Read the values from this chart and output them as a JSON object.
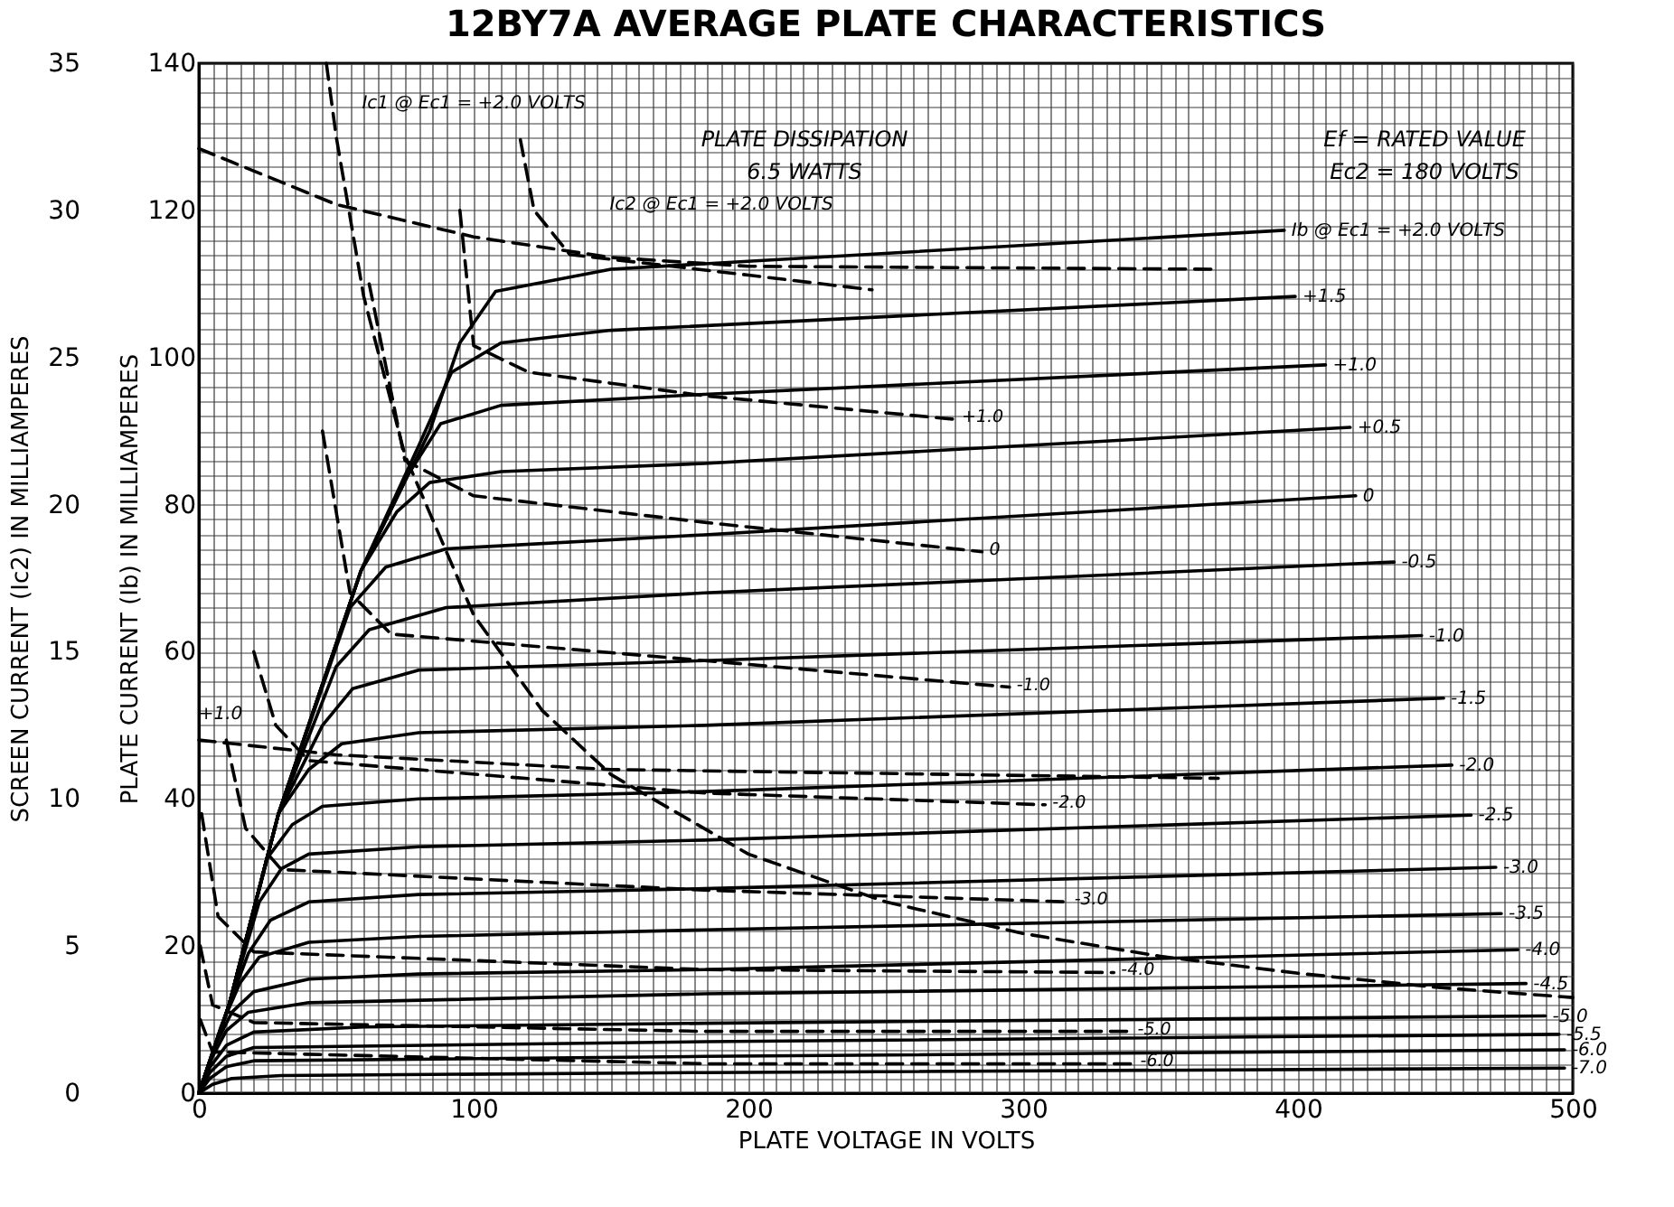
{
  "chart_data": {
    "type": "line",
    "title": "12BY7A AVERAGE PLATE CHARACTERISTICS",
    "xlabel": "PLATE VOLTAGE IN VOLTS",
    "ylabel": "PLATE CURRENT (Ib) IN MILLIAMPERES",
    "y2label": "SCREEN CURRENT (Ic2) IN MILLIAMPERES",
    "xlim": [
      0,
      500
    ],
    "ylim": [
      0,
      140
    ],
    "y2lim": [
      0,
      35
    ],
    "xticks": [
      0,
      {
        "value": 5,
        "label": null
      },
      {
        "value": 10,
        "label": null
      },
      {
        "value": 15,
        "label": null
      },
      {
        "value": 20,
        "label": null
      },
      {
        "value": 25,
        "label": null
      },
      {
        "value": 30,
        "label": null
      },
      {
        "value": 35,
        "label": null
      },
      {
        "value": 40,
        "label": null
      },
      {
        "value": 45,
        "label": null
      },
      {
        "value": 50,
        "label": null
      },
      {
        "value": 55,
        "label": null
      },
      {
        "value": 60,
        "label": null
      },
      {
        "value": 65,
        "label": null
      },
      {
        "value": 70,
        "label": null
      },
      {
        "value": 75,
        "label": null
      },
      {
        "value": 80,
        "label": null
      },
      {
        "value": 85,
        "label": null
      },
      {
        "value": 90,
        "label": null
      },
      {
        "value": 95,
        "label": null
      },
      100,
      {
        "value": 105,
        "label": null
      },
      {
        "value": 110,
        "label": null
      },
      {
        "value": 115,
        "label": null
      },
      {
        "value": 120,
        "label": null
      },
      {
        "value": 125,
        "label": null
      },
      {
        "value": 130,
        "label": null
      },
      {
        "value": 135,
        "label": null
      },
      {
        "value": 140,
        "label": null
      },
      {
        "value": 145,
        "label": null
      },
      {
        "value": 150,
        "label": null
      },
      {
        "value": 155,
        "label": null
      },
      {
        "value": 160,
        "label": null
      },
      {
        "value": 165,
        "label": null
      },
      {
        "value": 170,
        "label": null
      },
      {
        "value": 175,
        "label": null
      },
      {
        "value": 180,
        "label": null
      },
      {
        "value": 185,
        "label": null
      },
      {
        "value": 190,
        "label": null
      },
      {
        "value": 195,
        "label": null
      },
      200,
      {
        "value": 205,
        "label": null
      },
      {
        "value": 210,
        "label": null
      },
      {
        "value": 215,
        "label": null
      },
      {
        "value": 220,
        "label": null
      },
      {
        "value": 225,
        "label": null
      },
      {
        "value": 230,
        "label": null
      },
      {
        "value": 235,
        "label": null
      },
      {
        "value": 240,
        "label": null
      },
      {
        "value": 245,
        "label": null
      },
      {
        "value": 250,
        "label": null
      },
      {
        "value": 255,
        "label": null
      },
      {
        "value": 260,
        "label": null
      },
      {
        "value": 265,
        "label": null
      },
      {
        "value": 270,
        "label": null
      },
      {
        "value": 275,
        "label": null
      },
      {
        "value": 280,
        "label": null
      },
      {
        "value": 285,
        "label": null
      },
      {
        "value": 290,
        "label": null
      },
      {
        "value": 295,
        "label": null
      },
      300,
      {
        "value": 305,
        "label": null
      },
      {
        "value": 310,
        "label": null
      },
      {
        "value": 315,
        "label": null
      },
      {
        "value": 320,
        "label": null
      },
      {
        "value": 325,
        "label": null
      },
      {
        "value": 330,
        "label": null
      },
      {
        "value": 335,
        "label": null
      },
      {
        "value": 340,
        "label": null
      },
      {
        "value": 345,
        "label": null
      },
      {
        "value": 350,
        "label": null
      },
      {
        "value": 355,
        "label": null
      },
      {
        "value": 360,
        "label": null
      },
      {
        "value": 365,
        "label": null
      },
      {
        "value": 370,
        "label": null
      },
      {
        "value": 375,
        "label": null
      },
      {
        "value": 380,
        "label": null
      },
      {
        "value": 385,
        "label": null
      },
      {
        "value": 390,
        "label": null
      },
      {
        "value": 395,
        "label": null
      },
      400,
      {
        "value": 405,
        "label": null
      },
      {
        "value": 410,
        "label": null
      },
      {
        "value": 415,
        "label": null
      },
      {
        "value": 420,
        "label": null
      },
      {
        "value": 425,
        "label": null
      },
      {
        "value": 430,
        "label": null
      },
      {
        "value": 435,
        "label": null
      },
      {
        "value": 440,
        "label": null
      },
      {
        "value": 445,
        "label": null
      },
      {
        "value": 450,
        "label": null
      },
      {
        "value": 455,
        "label": null
      },
      {
        "value": 460,
        "label": null
      },
      {
        "value": 465,
        "label": null
      },
      {
        "value": 470,
        "label": null
      },
      {
        "value": 475,
        "label": null
      },
      {
        "value": 480,
        "label": null
      },
      {
        "value": 485,
        "label": null
      },
      {
        "value": 490,
        "label": null
      },
      {
        "value": 495,
        "label": null
      },
      500
    ],
    "yticks": [
      0,
      {
        "value": 2,
        "label": null
      },
      {
        "value": 4,
        "label": null
      },
      {
        "value": 6,
        "label": null
      },
      {
        "value": 8,
        "label": null
      },
      {
        "value": 10,
        "label": null
      },
      {
        "value": 12,
        "label": null
      },
      {
        "value": 14,
        "label": null
      },
      {
        "value": 16,
        "label": null
      },
      {
        "value": 18,
        "label": null
      },
      20,
      {
        "value": 22,
        "label": null
      },
      {
        "value": 24,
        "label": null
      },
      {
        "value": 26,
        "label": null
      },
      {
        "value": 28,
        "label": null
      },
      {
        "value": 30,
        "label": null
      },
      {
        "value": 32,
        "label": null
      },
      {
        "value": 34,
        "label": null
      },
      {
        "value": 36,
        "label": null
      },
      {
        "value": 38,
        "label": null
      },
      40,
      {
        "value": 42,
        "label": null
      },
      {
        "value": 44,
        "label": null
      },
      {
        "value": 46,
        "label": null
      },
      {
        "value": 48,
        "label": null
      },
      {
        "value": 50,
        "label": null
      },
      {
        "value": 52,
        "label": null
      },
      {
        "value": 54,
        "label": null
      },
      {
        "value": 56,
        "label": null
      },
      {
        "value": 58,
        "label": null
      },
      60,
      {
        "value": 62,
        "label": null
      },
      {
        "value": 64,
        "label": null
      },
      {
        "value": 66,
        "label": null
      },
      {
        "value": 68,
        "label": null
      },
      {
        "value": 70,
        "label": null
      },
      {
        "value": 72,
        "label": null
      },
      {
        "value": 74,
        "label": null
      },
      {
        "value": 76,
        "label": null
      },
      {
        "value": 78,
        "label": null
      },
      80,
      {
        "value": 82,
        "label": null
      },
      {
        "value": 84,
        "label": null
      },
      {
        "value": 86,
        "label": null
      },
      {
        "value": 88,
        "label": null
      },
      {
        "value": 90,
        "label": null
      },
      {
        "value": 92,
        "label": null
      },
      {
        "value": 94,
        "label": null
      },
      {
        "value": 96,
        "label": null
      },
      {
        "value": 98,
        "label": null
      },
      100,
      {
        "value": 102,
        "label": null
      },
      {
        "value": 104,
        "label": null
      },
      {
        "value": 106,
        "label": null
      },
      {
        "value": 108,
        "label": null
      },
      {
        "value": 110,
        "label": null
      },
      {
        "value": 112,
        "label": null
      },
      {
        "value": 114,
        "label": null
      },
      {
        "value": 116,
        "label": null
      },
      {
        "value": 118,
        "label": null
      },
      120,
      {
        "value": 122,
        "label": null
      },
      {
        "value": 124,
        "label": null
      },
      {
        "value": 126,
        "label": null
      },
      {
        "value": 128,
        "label": null
      },
      {
        "value": 130,
        "label": null
      },
      {
        "value": 132,
        "label": null
      },
      {
        "value": 134,
        "label": null
      },
      {
        "value": 136,
        "label": null
      },
      {
        "value": 138,
        "label": null
      },
      140
    ],
    "y2ticks": [
      0,
      5,
      10,
      15,
      20,
      25,
      30,
      35
    ],
    "grid": true,
    "line_style": "solid",
    "annotations": [
      "PLATE DISSIPATION\n6.5 WATTS",
      "Ef = RATED VALUE\nEc2 = 180 VOLTS",
      "Ic1 @ Ec1 = +2.0 VOLTS",
      "Ic2 @ Ec1 = +2.0 VOLTS",
      "+1.0"
    ],
    "series": [
      {
        "name": "Ib @ Ec1 = +2.0 VOLTS",
        "color": "#000000",
        "x": [
          0,
          11,
          29,
          59,
          84,
          95,
          108,
          150,
          395
        ],
        "values": [
          0,
          12,
          38,
          71,
          90,
          102,
          109,
          112,
          117.3
        ]
      },
      {
        "name": "+1.5",
        "color": "#000000",
        "x": [
          0,
          11,
          29,
          59,
          80,
          92,
          110,
          150,
          399
        ],
        "values": [
          0,
          12,
          38,
          71,
          88,
          98,
          102,
          103.7,
          108.3
        ]
      },
      {
        "name": "+1.0",
        "color": "#000000",
        "x": [
          0,
          11,
          29,
          59,
          76,
          88,
          110,
          184,
          410
        ],
        "values": [
          0,
          12,
          38,
          71,
          84,
          91,
          93.5,
          95,
          99
        ]
      },
      {
        "name": "+0.5",
        "color": "#000000",
        "x": [
          0,
          11,
          29,
          59,
          72,
          84,
          110,
          184,
          419
        ],
        "values": [
          0,
          12,
          38,
          71,
          79,
          83,
          84.5,
          85.6,
          90.5
        ]
      },
      {
        "name": "0",
        "color": "#000000",
        "x": [
          0,
          11,
          29,
          55,
          68,
          90,
          184,
          421
        ],
        "values": [
          0,
          12,
          38,
          66,
          71.5,
          74,
          75.9,
          81.2
        ]
      },
      {
        "name": "-0.5",
        "color": "#000000",
        "x": [
          0,
          11,
          29,
          50,
          62,
          90,
          184,
          435
        ],
        "values": [
          0,
          12,
          38,
          58,
          63,
          66,
          68,
          72.2
        ]
      },
      {
        "name": "-1.0",
        "color": "#000000",
        "x": [
          0,
          11,
          29,
          45,
          56,
          80,
          184,
          445
        ],
        "values": [
          0,
          12,
          38,
          50,
          55,
          57.5,
          58.8,
          62.2
        ]
      },
      {
        "name": "-1.5",
        "color": "#000000",
        "x": [
          0,
          11,
          29,
          40,
          52,
          80,
          184,
          453
        ],
        "values": [
          0,
          12,
          38,
          44,
          47.5,
          49,
          50,
          53.7
        ]
      },
      {
        "name": "-2.0",
        "color": "#000000",
        "x": [
          0,
          11,
          25,
          34,
          45,
          80,
          184,
          456
        ],
        "values": [
          0,
          12,
          32,
          36.5,
          39,
          40,
          41,
          44.6
        ]
      },
      {
        "name": "-2.5",
        "color": "#000000",
        "x": [
          0,
          11,
          22,
          30,
          40,
          80,
          184,
          463
        ],
        "values": [
          0,
          12,
          26,
          30.5,
          32.5,
          33.5,
          34.4,
          37.8
        ]
      },
      {
        "name": "-3.0",
        "color": "#000000",
        "x": [
          0,
          10,
          18,
          26,
          40,
          80,
          184,
          472
        ],
        "values": [
          0,
          11,
          19,
          23.5,
          26,
          27,
          27.8,
          30.7
        ]
      },
      {
        "name": "-3.5",
        "color": "#000000",
        "x": [
          0,
          8,
          15,
          22,
          40,
          80,
          184,
          474
        ],
        "values": [
          0,
          9,
          15,
          18.5,
          20.5,
          21.3,
          22.2,
          24.4
        ]
      },
      {
        "name": "-4.0",
        "color": "#000000",
        "x": [
          0,
          6,
          12,
          20,
          40,
          80,
          184,
          480
        ],
        "values": [
          0,
          6.5,
          11,
          13.8,
          15.5,
          16.2,
          16.8,
          19.5
        ]
      },
      {
        "name": "-4.5",
        "color": "#000000",
        "x": [
          0,
          5,
          10,
          18,
          40,
          184,
          483
        ],
        "values": [
          0,
          5,
          8.5,
          11,
          12.3,
          13.5,
          14.9
        ]
      },
      {
        "name": "-5.0",
        "color": "#000000",
        "x": [
          0,
          4,
          10,
          20,
          60,
          184,
          490
        ],
        "values": [
          0,
          3.5,
          6.5,
          8.3,
          9,
          9.5,
          10.5
        ]
      },
      {
        "name": "-5.5",
        "color": "#000000",
        "x": [
          0,
          4,
          10,
          20,
          184,
          495
        ],
        "values": [
          0,
          2.8,
          5,
          6.2,
          7,
          8
        ]
      },
      {
        "name": "-6.0",
        "color": "#000000",
        "x": [
          0,
          4,
          10,
          20,
          184,
          497
        ],
        "values": [
          0,
          2,
          3.6,
          4.4,
          5,
          5.9
        ]
      },
      {
        "name": "-7.0",
        "color": "#000000",
        "x": [
          0,
          5,
          12,
          30,
          184,
          497
        ],
        "values": [
          0,
          1.2,
          2,
          2.4,
          2.8,
          3.4
        ]
      },
      {
        "color": "#000000",
        "line_style": "dashed",
        "x": [
          46.4,
          50,
          60,
          75,
          100,
          125,
          150,
          200,
          250,
          300,
          350,
          400,
          450,
          500
        ],
        "values": [
          140,
          130,
          108.3,
          86.7,
          65,
          52,
          43.3,
          32.5,
          26,
          21.7,
          18.6,
          16.3,
          14.4,
          13
        ]
      },
      {
        "color": "#000000",
        "line_style": "dashed",
        "axis": "y2",
        "x": [
          0,
          50,
          100,
          150,
          200,
          370
        ],
        "values": [
          32.1,
          30.2,
          29.1,
          28.4,
          28.1,
          28
        ]
      },
      {
        "color": "#000000",
        "line_style": "dashed",
        "axis": "y2",
        "x": [
          0,
          50,
          150,
          371
        ],
        "values": [
          12,
          11.5,
          11,
          10.7
        ]
      },
      {
        "color": "#000000",
        "line_style": "dashed",
        "axis": "y2",
        "x": [
          117,
          122,
          135,
          200,
          245
        ],
        "values": [
          32.4,
          30,
          28.5,
          27.8,
          27.3
        ]
      },
      {
        "name": "+1.0",
        "color": "#000000",
        "line_style": "dashed",
        "axis": "y2",
        "x": [
          95,
          100,
          120,
          184,
          275
        ],
        "values": [
          30,
          25.4,
          24.5,
          23.7,
          22.9
        ]
      },
      {
        "name": "0",
        "color": "#000000",
        "line_style": "dashed",
        "axis": "y2",
        "x": [
          62,
          75,
          100,
          184,
          285
        ],
        "values": [
          27.5,
          21.5,
          20.3,
          19.4,
          18.4
        ]
      },
      {
        "name": "-1.0",
        "color": "#000000",
        "line_style": "dashed",
        "axis": "y2",
        "x": [
          45,
          55,
          70,
          184,
          295
        ],
        "values": [
          22.5,
          17,
          15.6,
          14.7,
          13.8
        ]
      },
      {
        "name": "-2.0",
        "color": "#000000",
        "line_style": "dashed",
        "axis": "y2",
        "x": [
          20,
          28,
          40,
          184,
          308
        ],
        "values": [
          15,
          12.5,
          11.3,
          10.2,
          9.8
        ]
      },
      {
        "name": "-3.0",
        "color": "#000000",
        "line_style": "dashed",
        "axis": "y2",
        "x": [
          10,
          17,
          30,
          184,
          316
        ],
        "values": [
          12,
          9,
          7.6,
          6.9,
          6.5
        ]
      },
      {
        "name": "-4.0",
        "color": "#000000",
        "line_style": "dashed",
        "axis": "y2",
        "x": [
          1,
          7,
          20,
          184,
          333
        ],
        "values": [
          9.5,
          6,
          4.8,
          4.2,
          4.1
        ]
      },
      {
        "name": "-5.0",
        "color": "#000000",
        "line_style": "dashed",
        "axis": "y2",
        "x": [
          0.5,
          5,
          20,
          184,
          339
        ],
        "values": [
          5,
          3,
          2.4,
          2.1,
          2.1
        ]
      },
      {
        "name": "-6.0",
        "color": "#000000",
        "line_style": "dashed",
        "axis": "y2",
        "x": [
          0.5,
          5,
          184,
          340
        ],
        "values": [
          2.5,
          1.4,
          1,
          1
        ]
      }
    ]
  }
}
